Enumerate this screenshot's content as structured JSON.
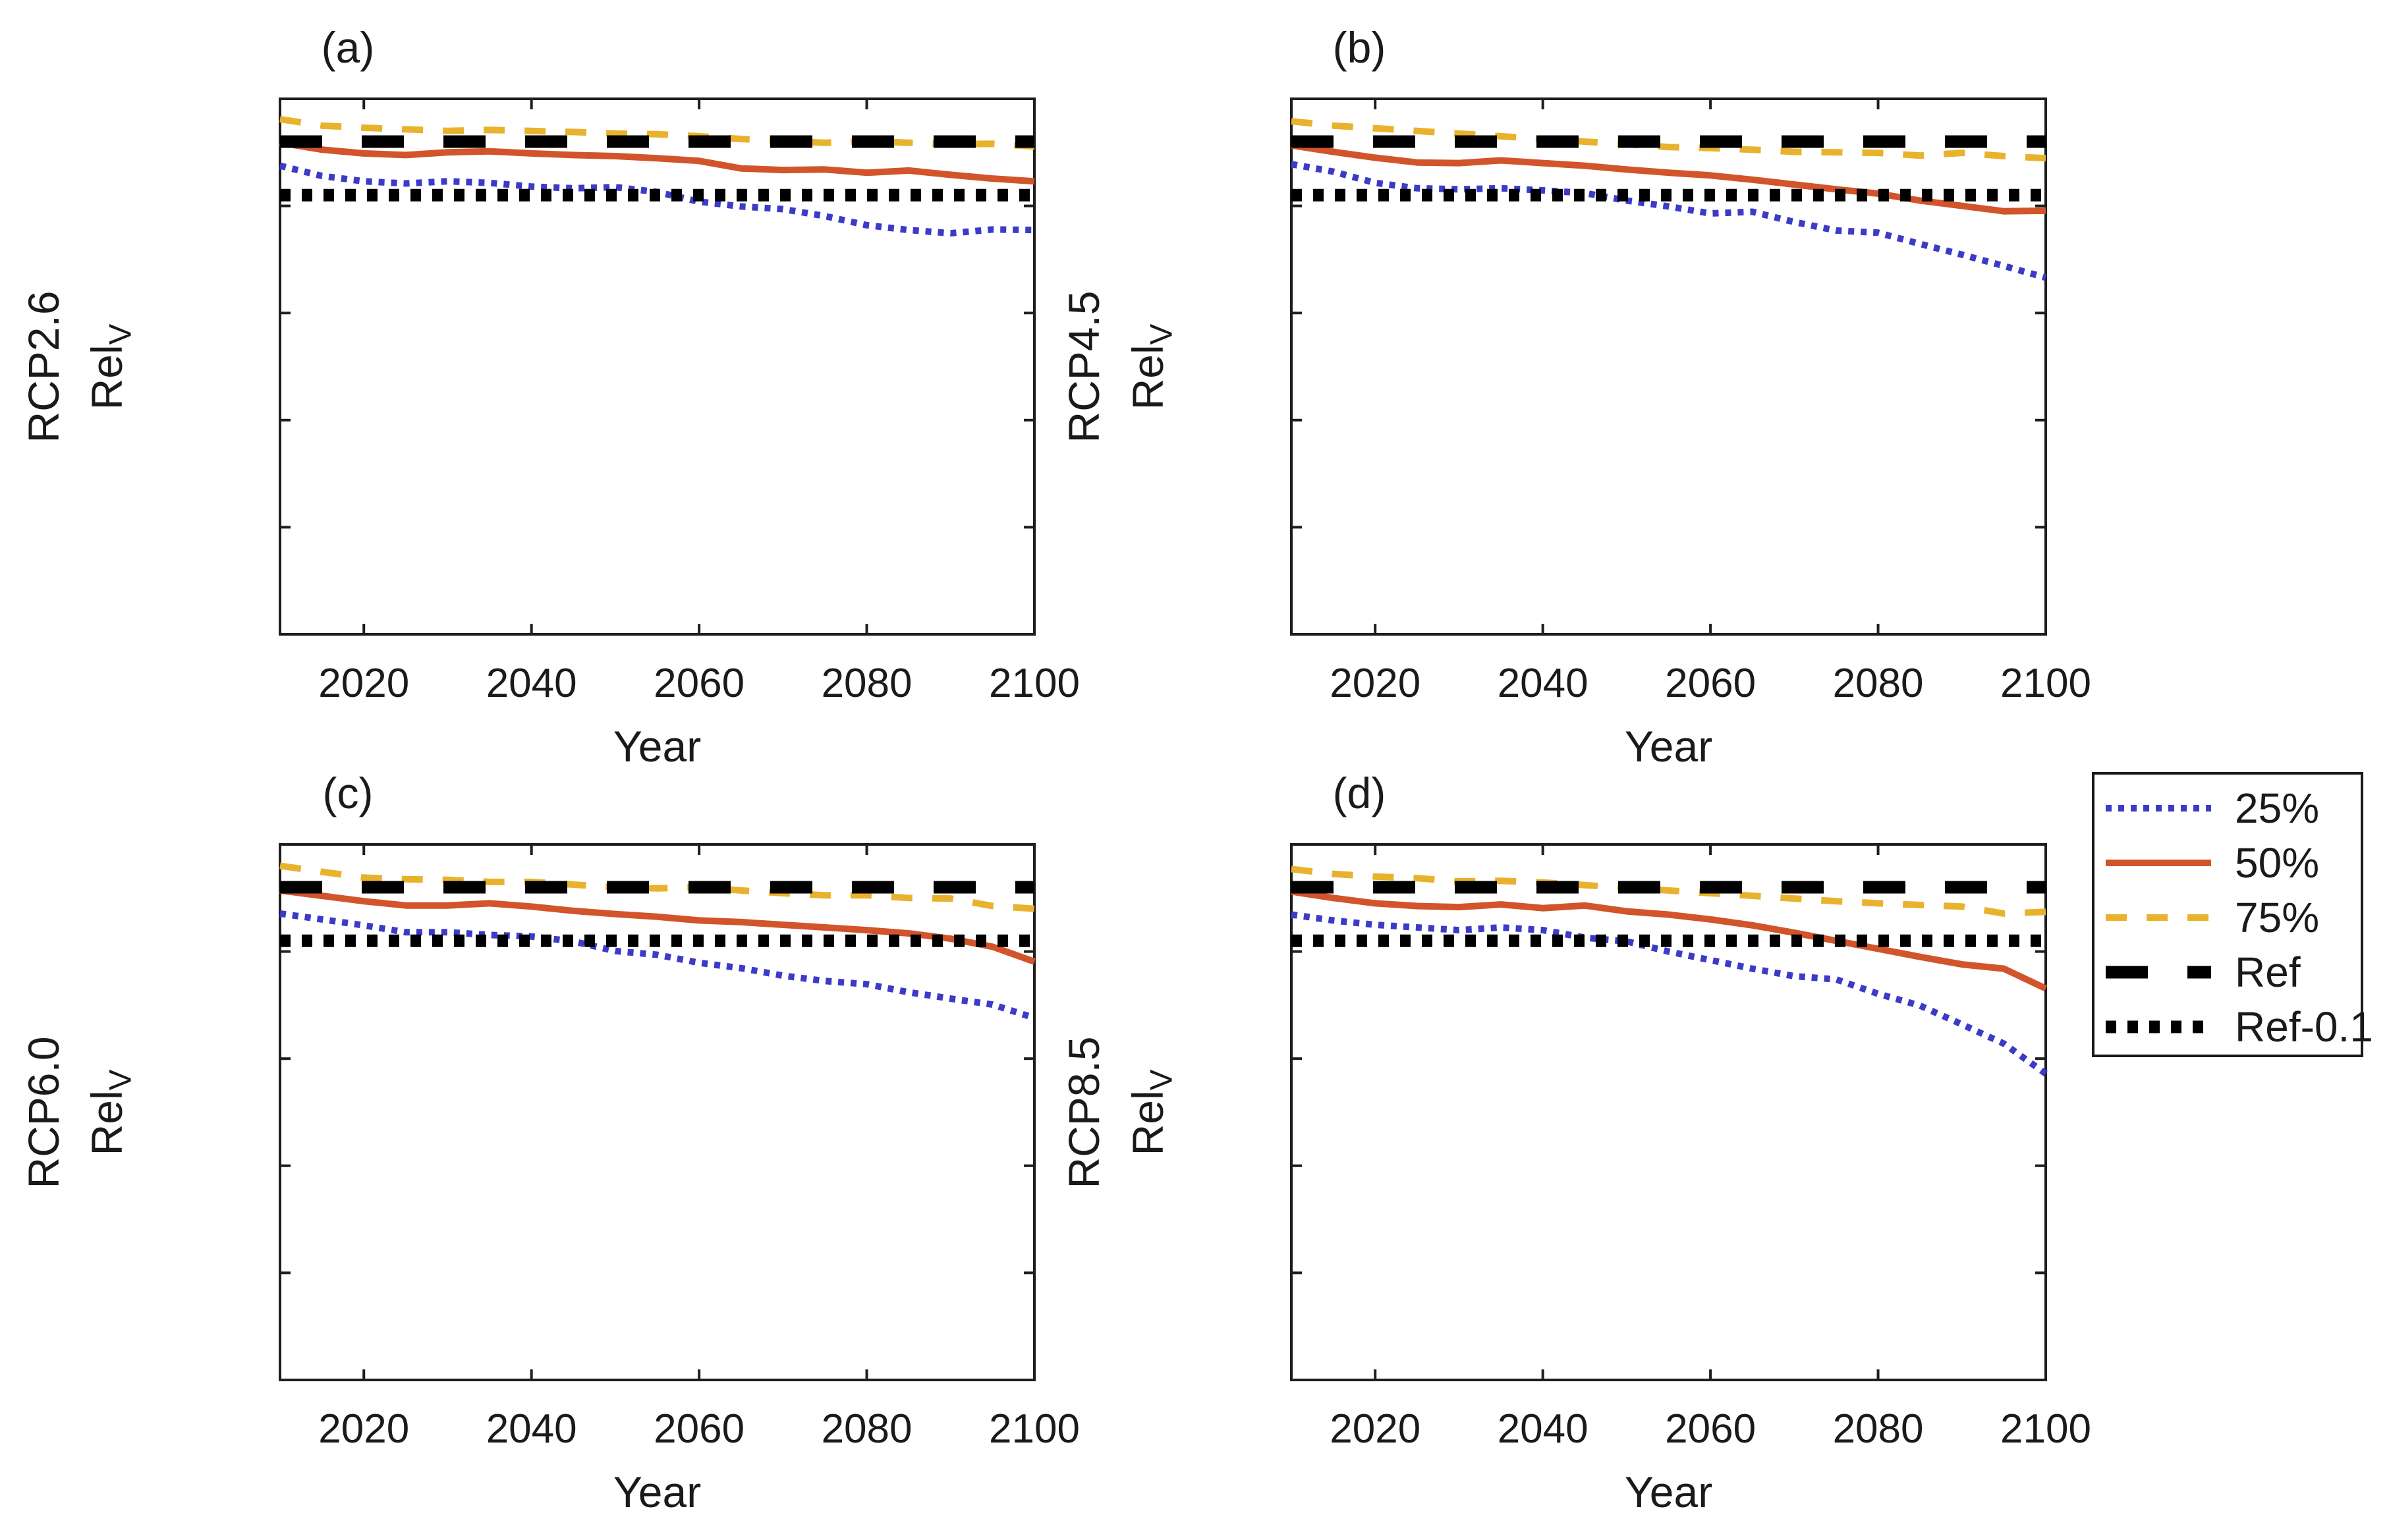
{
  "figure": {
    "background": "#ffffff",
    "axis_color": "#1e1e1e",
    "text_color": "#1a1a1a"
  },
  "legend": {
    "items": [
      {
        "label": "25%",
        "color": "#3B3BC8"
      },
      {
        "label": "50%",
        "color": "#D2542B"
      },
      {
        "label": "75%",
        "color": "#E9B22D"
      },
      {
        "label": "Ref",
        "color": "#000000"
      },
      {
        "label": "Ref-0.1",
        "color": "#000000"
      }
    ]
  },
  "chart_data": [
    {
      "type": "line",
      "panel": "a",
      "title": "(a)",
      "row_label": "RCP2.6",
      "ylabel_main": "Rel",
      "ylabel_sub": "V",
      "xlabel": "Year",
      "xlim": [
        2010,
        2100
      ],
      "ylim": [
        0,
        1
      ],
      "xticks": [
        2020,
        2040,
        2060,
        2080,
        2100
      ],
      "yticks": [
        0,
        0.2,
        0.4,
        0.6,
        0.8,
        1
      ],
      "x": [
        2010,
        2015,
        2020,
        2025,
        2030,
        2035,
        2040,
        2045,
        2050,
        2055,
        2060,
        2065,
        2070,
        2075,
        2080,
        2085,
        2090,
        2095,
        2100
      ],
      "series": [
        {
          "name": "25%",
          "values": [
            0.875,
            0.856,
            0.846,
            0.842,
            0.846,
            0.843,
            0.836,
            0.833,
            0.835,
            0.826,
            0.808,
            0.799,
            0.794,
            0.781,
            0.764,
            0.755,
            0.749,
            0.756,
            0.755
          ]
        },
        {
          "name": "50%",
          "values": [
            0.918,
            0.905,
            0.898,
            0.895,
            0.9,
            0.902,
            0.898,
            0.895,
            0.893,
            0.889,
            0.884,
            0.87,
            0.867,
            0.868,
            0.862,
            0.866,
            0.858,
            0.851,
            0.846
          ]
        },
        {
          "name": "75%",
          "values": [
            0.962,
            0.95,
            0.946,
            0.943,
            0.94,
            0.942,
            0.94,
            0.938,
            0.935,
            0.934,
            0.93,
            0.925,
            0.921,
            0.918,
            0.921,
            0.918,
            0.915,
            0.916,
            0.911
          ]
        },
        {
          "name": "Ref",
          "constant": 0.92
        },
        {
          "name": "Ref-0.1",
          "constant": 0.82
        }
      ]
    },
    {
      "type": "line",
      "panel": "b",
      "title": "(b)",
      "row_label": "RCP4.5",
      "ylabel_main": "Rel",
      "ylabel_sub": "V",
      "xlabel": "Year",
      "xlim": [
        2010,
        2100
      ],
      "ylim": [
        0,
        1
      ],
      "xticks": [
        2020,
        2040,
        2060,
        2080,
        2100
      ],
      "yticks": [
        0,
        0.2,
        0.4,
        0.6,
        0.8,
        1
      ],
      "x": [
        2010,
        2015,
        2020,
        2025,
        2030,
        2035,
        2040,
        2045,
        2050,
        2055,
        2060,
        2065,
        2070,
        2075,
        2080,
        2085,
        2090,
        2095,
        2100
      ],
      "series": [
        {
          "name": "25%",
          "values": [
            0.878,
            0.864,
            0.843,
            0.833,
            0.831,
            0.833,
            0.829,
            0.824,
            0.81,
            0.799,
            0.786,
            0.789,
            0.77,
            0.754,
            0.75,
            0.729,
            0.709,
            0.688,
            0.666
          ]
        },
        {
          "name": "50%",
          "values": [
            0.913,
            0.901,
            0.89,
            0.881,
            0.88,
            0.885,
            0.88,
            0.875,
            0.868,
            0.862,
            0.857,
            0.849,
            0.84,
            0.831,
            0.823,
            0.81,
            0.8,
            0.79,
            0.791
          ]
        },
        {
          "name": "75%",
          "values": [
            0.958,
            0.95,
            0.945,
            0.94,
            0.935,
            0.93,
            0.925,
            0.92,
            0.915,
            0.91,
            0.908,
            0.905,
            0.901,
            0.9,
            0.899,
            0.894,
            0.899,
            0.893,
            0.889
          ]
        },
        {
          "name": "Ref",
          "constant": 0.92
        },
        {
          "name": "Ref-0.1",
          "constant": 0.82
        }
      ]
    },
    {
      "type": "line",
      "panel": "c",
      "title": "(c)",
      "row_label": "RCP6.0",
      "ylabel_main": "Rel",
      "ylabel_sub": "V",
      "xlabel": "Year",
      "xlim": [
        2010,
        2100
      ],
      "ylim": [
        0,
        1
      ],
      "xticks": [
        2020,
        2040,
        2060,
        2080,
        2100
      ],
      "yticks": [
        0,
        0.2,
        0.4,
        0.6,
        0.8,
        1
      ],
      "x": [
        2010,
        2015,
        2020,
        2025,
        2030,
        2035,
        2040,
        2045,
        2050,
        2055,
        2060,
        2065,
        2070,
        2075,
        2080,
        2085,
        2090,
        2095,
        2100
      ],
      "series": [
        {
          "name": "25%",
          "values": [
            0.871,
            0.86,
            0.849,
            0.836,
            0.836,
            0.831,
            0.828,
            0.819,
            0.801,
            0.794,
            0.779,
            0.769,
            0.755,
            0.745,
            0.739,
            0.724,
            0.712,
            0.701,
            0.676
          ]
        },
        {
          "name": "50%",
          "values": [
            0.914,
            0.904,
            0.894,
            0.886,
            0.886,
            0.89,
            0.884,
            0.876,
            0.87,
            0.865,
            0.858,
            0.855,
            0.85,
            0.845,
            0.84,
            0.834,
            0.824,
            0.809,
            0.781
          ]
        },
        {
          "name": "75%",
          "values": [
            0.96,
            0.949,
            0.938,
            0.935,
            0.934,
            0.93,
            0.93,
            0.925,
            0.92,
            0.918,
            0.92,
            0.914,
            0.909,
            0.905,
            0.905,
            0.9,
            0.899,
            0.885,
            0.88
          ]
        },
        {
          "name": "Ref",
          "constant": 0.92
        },
        {
          "name": "Ref-0.1",
          "constant": 0.82
        }
      ]
    },
    {
      "type": "line",
      "panel": "d",
      "title": "(d)",
      "row_label": "RCP8.5",
      "ylabel_main": "Rel",
      "ylabel_sub": "V",
      "xlabel": "Year",
      "xlim": [
        2010,
        2100
      ],
      "ylim": [
        0,
        1
      ],
      "xticks": [
        2020,
        2040,
        2060,
        2080,
        2100
      ],
      "yticks": [
        0,
        0.2,
        0.4,
        0.6,
        0.8,
        1
      ],
      "x": [
        2010,
        2015,
        2020,
        2025,
        2030,
        2035,
        2040,
        2045,
        2050,
        2055,
        2060,
        2065,
        2070,
        2075,
        2080,
        2085,
        2090,
        2095,
        2100
      ],
      "series": [
        {
          "name": "25%",
          "values": [
            0.869,
            0.858,
            0.85,
            0.845,
            0.84,
            0.845,
            0.84,
            0.826,
            0.819,
            0.8,
            0.784,
            0.768,
            0.754,
            0.748,
            0.721,
            0.699,
            0.664,
            0.628,
            0.572
          ]
        },
        {
          "name": "50%",
          "values": [
            0.912,
            0.9,
            0.89,
            0.885,
            0.883,
            0.888,
            0.881,
            0.886,
            0.875,
            0.869,
            0.86,
            0.849,
            0.835,
            0.82,
            0.805,
            0.79,
            0.776,
            0.768,
            0.731
          ]
        },
        {
          "name": "75%",
          "values": [
            0.954,
            0.945,
            0.94,
            0.937,
            0.931,
            0.932,
            0.929,
            0.924,
            0.919,
            0.914,
            0.909,
            0.904,
            0.899,
            0.894,
            0.89,
            0.887,
            0.884,
            0.871,
            0.874
          ]
        },
        {
          "name": "Ref",
          "constant": 0.92
        },
        {
          "name": "Ref-0.1",
          "constant": 0.82
        }
      ]
    }
  ]
}
